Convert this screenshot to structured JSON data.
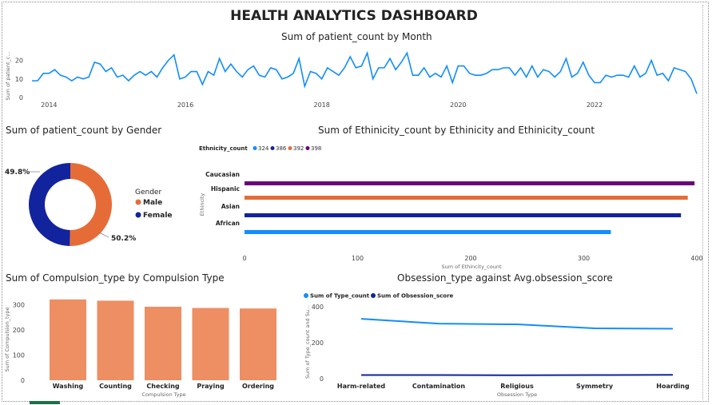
{
  "dashboard": {
    "title": "HEALTH ANALYTICS DASHBOARD"
  },
  "colors": {
    "blue": "#118DFF",
    "navy": "#12239E",
    "orange": "#E66C37",
    "purple": "#6B007B",
    "bar": "#EE8E63"
  },
  "chart_data": [
    {
      "type": "line",
      "title": "Sum of patient_count by Month",
      "ylabel": "Sum of patient_c...",
      "ylim": [
        0,
        25
      ],
      "yticks": [
        0,
        10,
        20
      ],
      "xticks": [
        "2014",
        "2016",
        "2018",
        "2020",
        "2022"
      ],
      "x_start": "2013-10",
      "x_end": "2022-12",
      "series": [
        {
          "values": [
            9,
            9,
            13,
            13,
            15,
            12,
            11,
            9,
            11,
            10,
            11,
            19,
            18,
            14,
            16,
            11,
            12,
            9,
            12,
            14,
            12,
            14,
            11,
            16,
            20,
            23,
            10,
            11,
            14,
            14,
            7,
            14,
            12,
            21,
            14,
            18,
            14,
            11,
            15,
            17,
            12,
            11,
            16,
            15,
            10,
            11,
            13,
            21,
            6,
            14,
            13,
            10,
            16,
            14,
            12,
            16,
            22,
            16,
            17,
            24,
            10,
            16,
            16,
            21,
            15,
            19,
            24,
            12,
            12,
            16,
            11,
            13,
            11,
            17,
            8,
            17,
            17,
            13,
            12,
            12,
            13,
            15,
            15,
            16,
            16,
            12,
            16,
            11,
            17,
            11,
            15,
            14,
            11,
            14,
            21,
            11,
            13,
            19,
            12,
            8,
            8,
            12,
            11,
            12,
            12,
            11,
            17,
            11,
            13,
            20,
            12,
            13,
            9,
            16,
            15,
            14,
            10,
            2
          ]
        }
      ]
    },
    {
      "type": "pie",
      "title": "Sum of patient_count by Gender",
      "legend_title": "Gender",
      "slices": [
        {
          "label": "Male",
          "value": 50.2,
          "display": "50.2%",
          "color": "#E66C37"
        },
        {
          "label": "Female",
          "value": 49.8,
          "display": "49.8%",
          "color": "#12239E"
        }
      ]
    },
    {
      "type": "bar",
      "orientation": "horizontal",
      "title": "Sum of Ethinicity_count by Ethinicity and Ethinicity_count",
      "legend_title": "Ethnicity_count",
      "legend": [
        "324",
        "386",
        "392",
        "398"
      ],
      "categories": [
        "Caucasian",
        "Hispanic",
        "Asian",
        "African"
      ],
      "values": [
        398,
        392,
        386,
        324
      ],
      "colors": [
        "#6B007B",
        "#E66C37",
        "#12239E",
        "#118DFF"
      ],
      "ylabel": "Ethincity",
      "xlabel": "Sum of Ethincity_count",
      "xlim": [
        0,
        400
      ],
      "xticks": [
        0,
        100,
        200,
        300,
        400
      ]
    },
    {
      "type": "bar",
      "title": "Sum of Compulsion_type by Compulsion Type",
      "categories": [
        "Washing",
        "Counting",
        "Checking",
        "Praying",
        "Ordering"
      ],
      "values": [
        321,
        316,
        292,
        287,
        285
      ],
      "xlabel": "Compulsion Type",
      "ylabel": "Sum of Compulsion_type",
      "ylim": [
        0,
        330
      ],
      "yticks": [
        0,
        100,
        200,
        300
      ]
    },
    {
      "type": "line",
      "title": "Obsession_type against Avg.obsession_score",
      "categories": [
        "Harm-related",
        "Contamination",
        "Religious",
        "Symmetry",
        "Hoarding"
      ],
      "series": [
        {
          "name": "Sum of Type_count",
          "values": [
            333,
            306,
            302,
            280,
            278
          ],
          "color": "#118DFF"
        },
        {
          "name": "Sum of Obsession_score",
          "values": [
            20,
            20,
            19,
            20,
            21
          ],
          "color": "#12239E"
        }
      ],
      "xlabel": "Obsession Type",
      "ylabel": "Sum of Type_count and Su...",
      "ylim": [
        0,
        400
      ],
      "yticks": [
        0,
        200,
        400
      ]
    }
  ]
}
